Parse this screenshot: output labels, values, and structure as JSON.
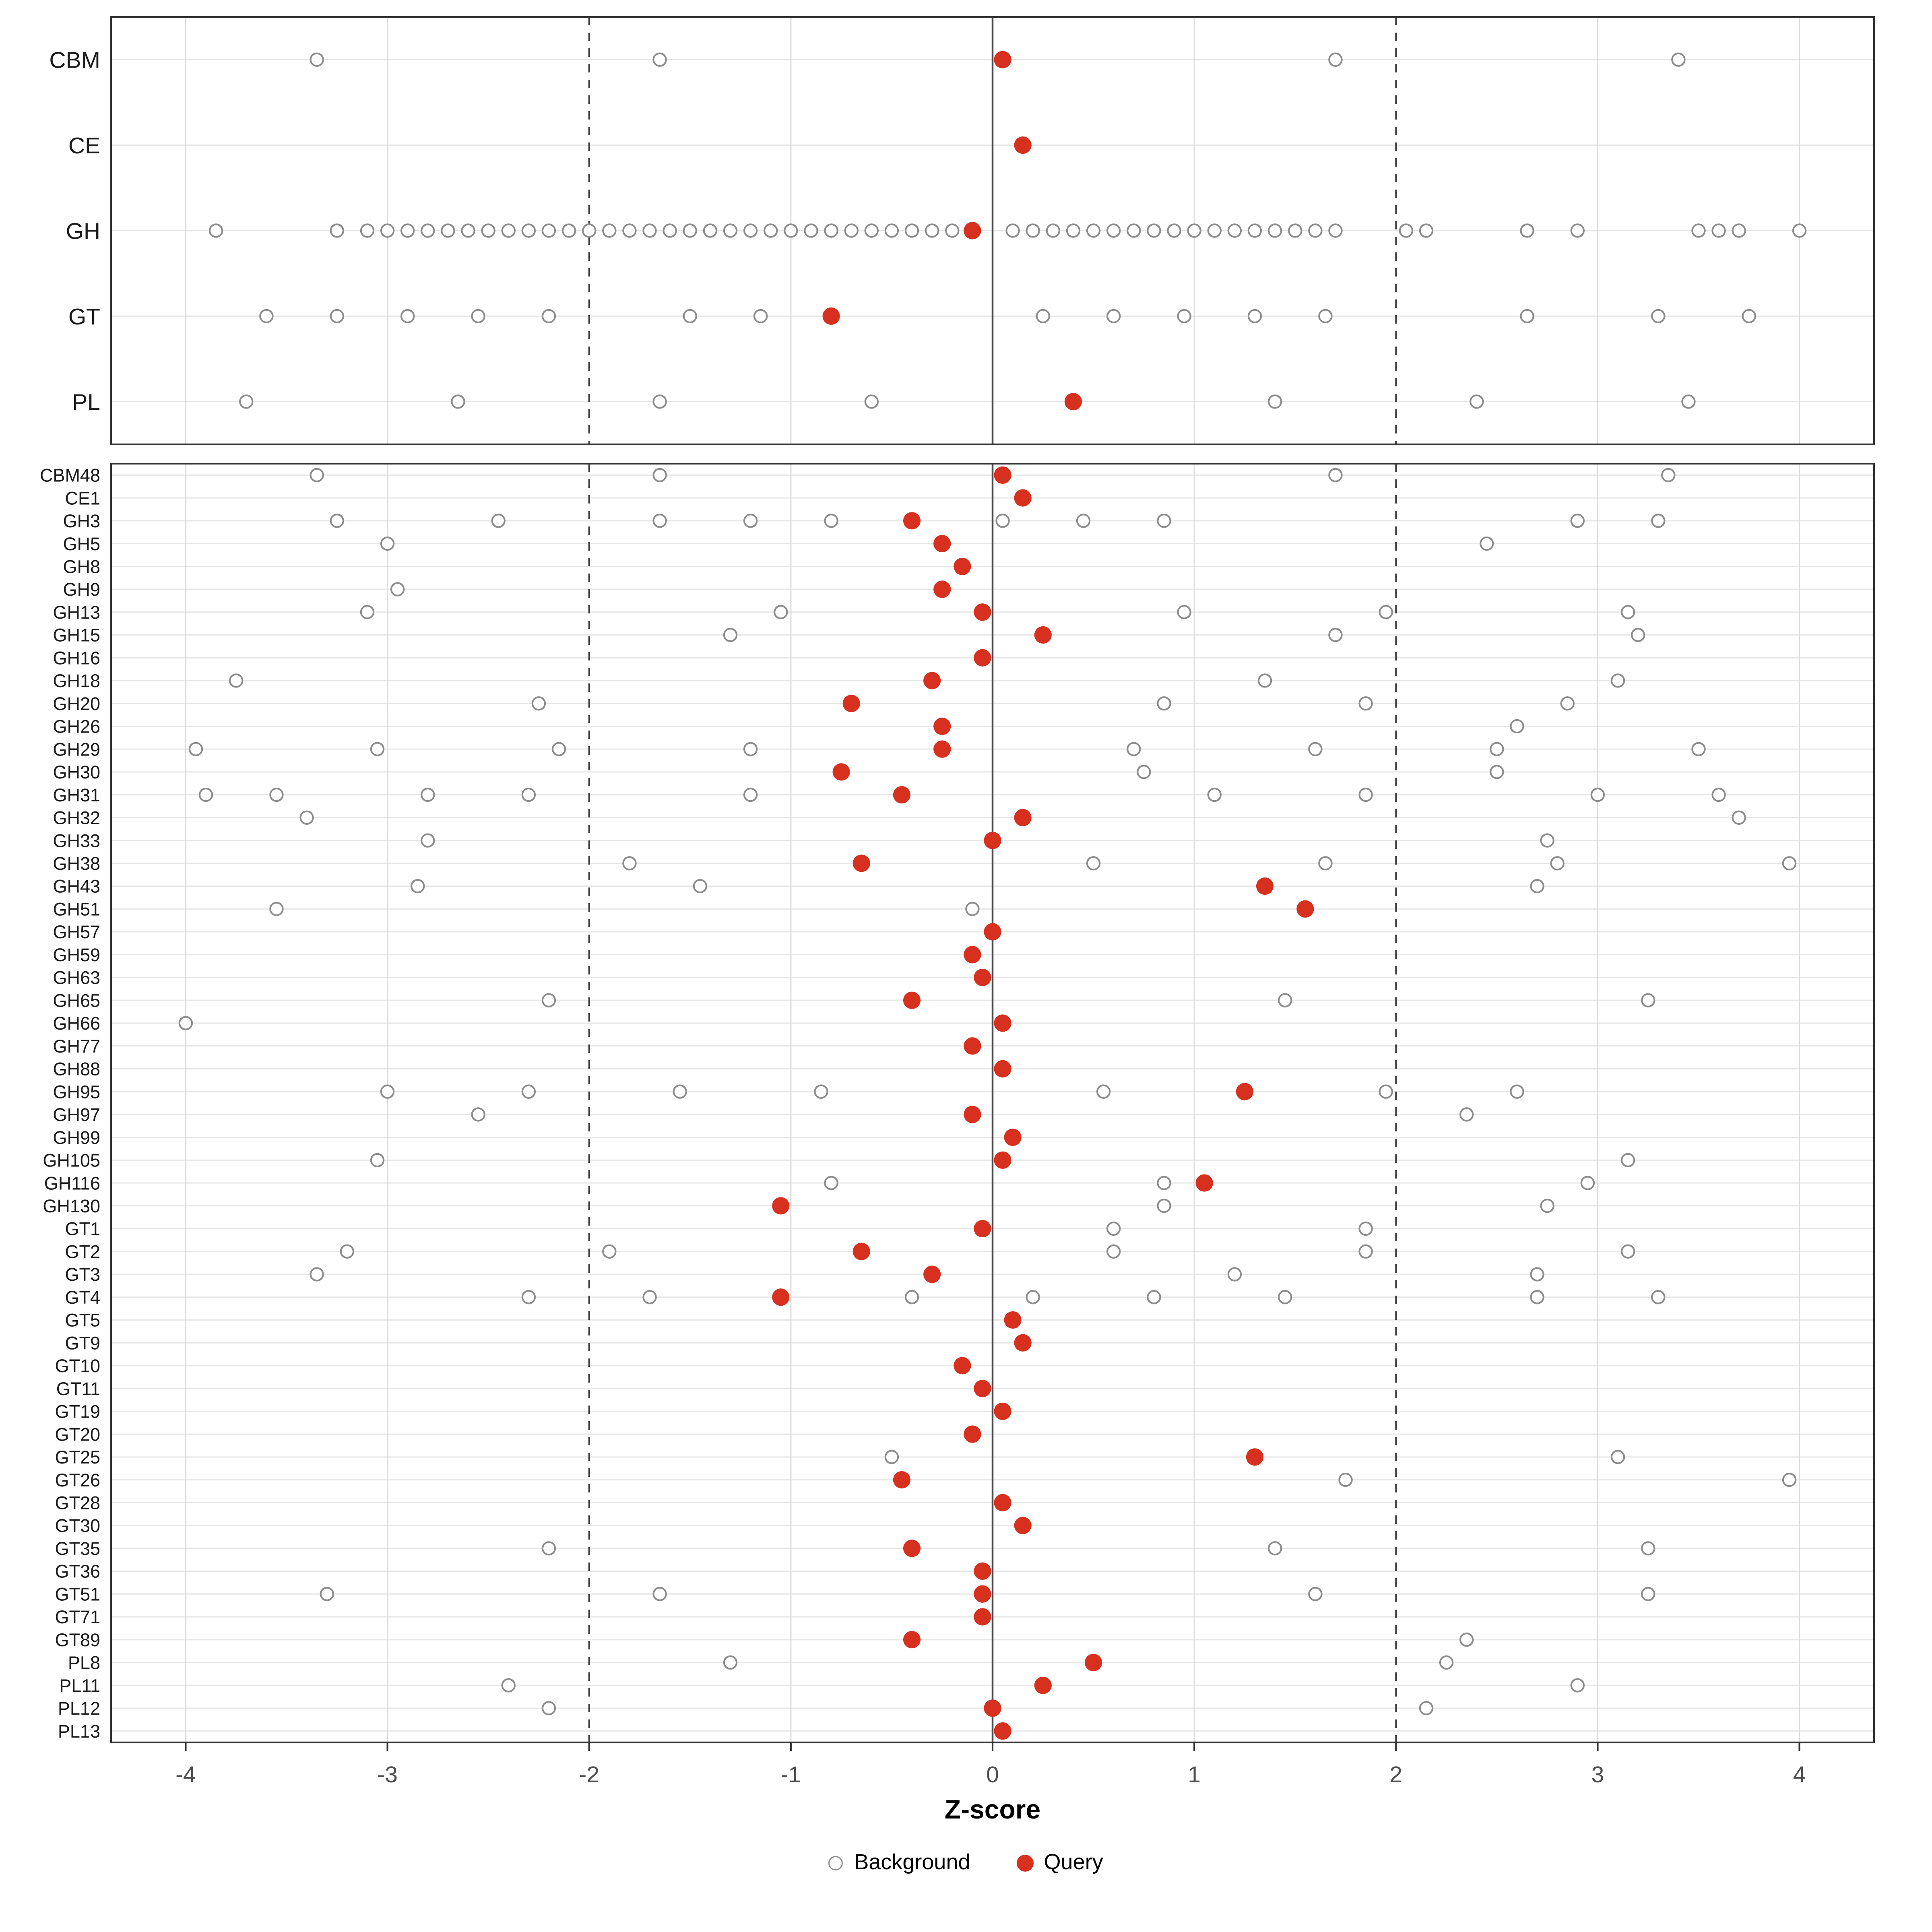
{
  "chart_data": {
    "type": "scatter",
    "title": "",
    "xlabel": "Z-score",
    "ylabel": "",
    "xlim": [
      -4.37,
      4.37
    ],
    "x_ticks": [
      -4,
      -3,
      -2,
      -1,
      0,
      1,
      2,
      3,
      4
    ],
    "grid": "major-only",
    "legend_position": "bottom",
    "reference_lines": {
      "solid": [
        0
      ],
      "dashed": [
        -2,
        2
      ]
    },
    "legend": {
      "background_label": "Background",
      "query_label": "Query"
    },
    "colors": {
      "query": "#d7301f",
      "background_stroke": "#8c8c8c",
      "gridline": "#dcdcdc"
    },
    "top_panel": {
      "rows": [
        {
          "label": "CBM",
          "background": [
            -3.35,
            -1.65,
            1.7,
            3.4
          ],
          "query": 0.05
        },
        {
          "label": "CE",
          "background": [],
          "query": 0.15
        },
        {
          "label": "GH",
          "background": [
            -3.85,
            -3.25,
            -3.1,
            -3.0,
            -2.9,
            -2.8,
            -2.7,
            -2.6,
            -2.5,
            -2.4,
            -2.3,
            -2.2,
            -2.1,
            -2.0,
            -1.9,
            -1.8,
            -1.7,
            -1.6,
            -1.5,
            -1.4,
            -1.3,
            -1.2,
            -1.1,
            -1.0,
            -0.9,
            -0.8,
            -0.7,
            -0.6,
            -0.5,
            -0.4,
            -0.3,
            -0.2,
            0.1,
            0.2,
            0.3,
            0.4,
            0.5,
            0.6,
            0.7,
            0.8,
            0.9,
            1.0,
            1.1,
            1.2,
            1.3,
            1.4,
            1.5,
            1.6,
            1.7,
            2.05,
            2.15,
            2.65,
            2.9,
            3.5,
            3.6,
            3.7,
            4.0
          ],
          "query": -0.1
        },
        {
          "label": "GT",
          "background": [
            -3.6,
            -3.25,
            -2.9,
            -2.55,
            -2.2,
            -1.5,
            -1.15,
            0.25,
            0.6,
            0.95,
            1.3,
            1.65,
            2.65,
            3.3,
            3.75
          ],
          "query": -0.8
        },
        {
          "label": "PL",
          "background": [
            -3.7,
            -2.65,
            -1.65,
            -0.6,
            1.4,
            2.4,
            3.45
          ],
          "query": 0.4
        }
      ]
    },
    "bottom_panel": {
      "rows": [
        {
          "label": "CBM48",
          "background": [
            -3.35,
            -1.65,
            1.7,
            3.35
          ],
          "query": 0.05
        },
        {
          "label": "CE1",
          "background": [],
          "query": 0.15
        },
        {
          "label": "GH3",
          "background": [
            -3.25,
            -2.45,
            -1.65,
            -1.2,
            -0.8,
            0.05,
            0.45,
            0.85,
            2.9,
            3.3
          ],
          "query": -0.4
        },
        {
          "label": "GH5",
          "background": [
            -3.0,
            2.45
          ],
          "query": -0.25
        },
        {
          "label": "GH8",
          "background": [],
          "query": -0.15
        },
        {
          "label": "GH9",
          "background": [
            -2.95
          ],
          "query": -0.25
        },
        {
          "label": "GH13",
          "background": [
            -3.1,
            -1.05,
            0.95,
            1.95,
            3.15
          ],
          "query": -0.05
        },
        {
          "label": "GH15",
          "background": [
            -1.3,
            1.7,
            3.2
          ],
          "query": 0.25
        },
        {
          "label": "GH16",
          "background": [],
          "query": -0.05
        },
        {
          "label": "GH18",
          "background": [
            -3.75,
            1.35,
            3.1
          ],
          "query": -0.3
        },
        {
          "label": "GH20",
          "background": [
            -2.25,
            0.85,
            1.85,
            2.85
          ],
          "query": -0.7
        },
        {
          "label": "GH26",
          "background": [
            2.6
          ],
          "query": -0.25
        },
        {
          "label": "GH29",
          "background": [
            -3.95,
            -3.05,
            -2.15,
            -1.2,
            0.7,
            1.6,
            2.5,
            3.5
          ],
          "query": -0.25
        },
        {
          "label": "GH30",
          "background": [
            0.75,
            2.5
          ],
          "query": -0.75
        },
        {
          "label": "GH31",
          "background": [
            -3.9,
            -3.55,
            -2.8,
            -2.3,
            -1.2,
            1.1,
            1.85,
            3.0,
            3.6
          ],
          "query": -0.45
        },
        {
          "label": "GH32",
          "background": [
            -3.4,
            3.7
          ],
          "query": 0.15
        },
        {
          "label": "GH33",
          "background": [
            -2.8,
            2.75
          ],
          "query": 0.0
        },
        {
          "label": "GH38",
          "background": [
            -1.8,
            0.5,
            1.65,
            2.8,
            3.95
          ],
          "query": -0.65
        },
        {
          "label": "GH43",
          "background": [
            -2.85,
            -1.45,
            2.7
          ],
          "query": 1.35
        },
        {
          "label": "GH51",
          "background": [
            -3.55,
            -0.1
          ],
          "query": 1.55
        },
        {
          "label": "GH57",
          "background": [],
          "query": 0.0
        },
        {
          "label": "GH59",
          "background": [],
          "query": -0.1
        },
        {
          "label": "GH63",
          "background": [],
          "query": -0.05
        },
        {
          "label": "GH65",
          "background": [
            -2.2,
            1.45,
            3.25
          ],
          "query": -0.4
        },
        {
          "label": "GH66",
          "background": [
            -4.0
          ],
          "query": 0.05
        },
        {
          "label": "GH77",
          "background": [],
          "query": -0.1
        },
        {
          "label": "GH88",
          "background": [],
          "query": 0.05
        },
        {
          "label": "GH95",
          "background": [
            -3.0,
            -2.3,
            -1.55,
            -0.85,
            0.55,
            1.95,
            2.6
          ],
          "query": 1.25
        },
        {
          "label": "GH97",
          "background": [
            -2.55,
            2.35
          ],
          "query": -0.1
        },
        {
          "label": "GH99",
          "background": [],
          "query": 0.1
        },
        {
          "label": "GH105",
          "background": [
            -3.05,
            3.15
          ],
          "query": 0.05
        },
        {
          "label": "GH116",
          "background": [
            -0.8,
            0.85,
            2.95
          ],
          "query": 1.05
        },
        {
          "label": "GH130",
          "background": [
            0.85,
            2.75
          ],
          "query": -1.05
        },
        {
          "label": "GT1",
          "background": [
            0.6,
            1.85
          ],
          "query": -0.05
        },
        {
          "label": "GT2",
          "background": [
            -3.2,
            -1.9,
            0.6,
            1.85,
            3.15
          ],
          "query": -0.65
        },
        {
          "label": "GT3",
          "background": [
            -3.35,
            1.2,
            2.7
          ],
          "query": -0.3
        },
        {
          "label": "GT4",
          "background": [
            -2.3,
            -1.7,
            -0.4,
            0.2,
            0.8,
            1.45,
            2.7,
            3.3
          ],
          "query": -1.05
        },
        {
          "label": "GT5",
          "background": [],
          "query": 0.1
        },
        {
          "label": "GT9",
          "background": [],
          "query": 0.15
        },
        {
          "label": "GT10",
          "background": [],
          "query": -0.15
        },
        {
          "label": "GT11",
          "background": [],
          "query": -0.05
        },
        {
          "label": "GT19",
          "background": [],
          "query": 0.05
        },
        {
          "label": "GT20",
          "background": [],
          "query": -0.1
        },
        {
          "label": "GT25",
          "background": [
            -0.5,
            3.1
          ],
          "query": 1.3
        },
        {
          "label": "GT26",
          "background": [
            1.75,
            3.95
          ],
          "query": -0.45
        },
        {
          "label": "GT28",
          "background": [],
          "query": 0.05
        },
        {
          "label": "GT30",
          "background": [],
          "query": 0.15
        },
        {
          "label": "GT35",
          "background": [
            -2.2,
            1.4,
            3.25
          ],
          "query": -0.4
        },
        {
          "label": "GT36",
          "background": [],
          "query": -0.05
        },
        {
          "label": "GT51",
          "background": [
            -3.3,
            -1.65,
            1.6,
            3.25
          ],
          "query": -0.05
        },
        {
          "label": "GT71",
          "background": [],
          "query": -0.05
        },
        {
          "label": "GT89",
          "background": [
            2.35
          ],
          "query": -0.4
        },
        {
          "label": "PL8",
          "background": [
            -1.3,
            2.25
          ],
          "query": 0.5
        },
        {
          "label": "PL11",
          "background": [
            -2.4,
            2.9
          ],
          "query": 0.25
        },
        {
          "label": "PL12",
          "background": [
            -2.2,
            2.15
          ],
          "query": 0.0
        },
        {
          "label": "PL13",
          "background": [],
          "query": 0.05
        }
      ]
    }
  }
}
